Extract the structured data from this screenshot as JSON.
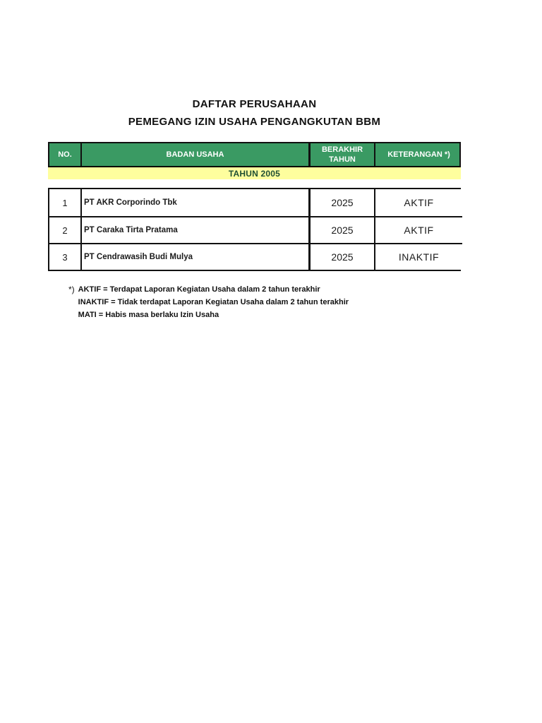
{
  "page": {
    "title_line1": "DAFTAR PERUSAHAAN",
    "title_line2": "PEMEGANG IZIN USAHA PENGANGKUTAN BBM"
  },
  "table": {
    "headers": {
      "no": "NO.",
      "badan_usaha": "BADAN USAHA",
      "berakhir_tahun": "BERAKHIR TAHUN",
      "keterangan": "KETERANGAN *)"
    },
    "year_band": "TAHUN 2005",
    "rows": [
      {
        "no": "1",
        "badan_usaha": "PT AKR Corporindo Tbk",
        "berakhir_tahun": "2025",
        "keterangan": "AKTIF"
      },
      {
        "no": "2",
        "badan_usaha": "PT Caraka Tirta Pratama",
        "berakhir_tahun": "2025",
        "keterangan": "AKTIF"
      },
      {
        "no": "3",
        "badan_usaha": "PT Cendrawasih Budi Mulya",
        "berakhir_tahun": "2025",
        "keterangan": "INAKTIF"
      }
    ]
  },
  "footnotes": {
    "marker": "*)",
    "lines": [
      "AKTIF = Terdapat Laporan Kegiatan Usaha dalam 2 tahun terakhir",
      "INAKTIF = Tidak terdapat Laporan Kegiatan Usaha dalam 2 tahun terakhir",
      "MATI = Habis masa berlaku Izin Usaha"
    ]
  },
  "colors": {
    "header_green": "#3a9a63",
    "band_yellow": "#fefe9e",
    "band_text_green": "#1f4e33",
    "border_black": "#111111"
  }
}
